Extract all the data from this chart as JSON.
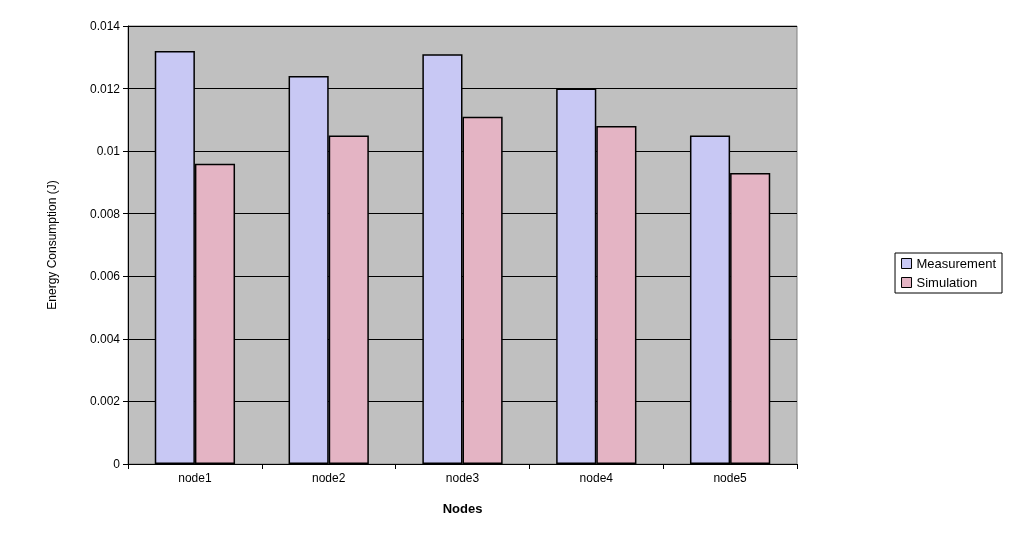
{
  "chart_data": {
    "type": "bar",
    "xlabel": "Nodes",
    "ylabel": "Energy Consumption (J)",
    "categories": [
      "node1",
      "node2",
      "node3",
      "node4",
      "node5"
    ],
    "series": [
      {
        "name": "Measurement",
        "color": "#c8c8f4",
        "values": [
          0.0132,
          0.0124,
          0.0131,
          0.012,
          0.0105
        ]
      },
      {
        "name": "Simulation",
        "color": "#e4b4c4",
        "values": [
          0.0096,
          0.0105,
          0.0111,
          0.0108,
          0.0093
        ]
      }
    ],
    "ylim": [
      0,
      0.014
    ],
    "yticks": [
      0,
      0.002,
      0.004,
      0.006,
      0.008,
      0.01,
      0.012,
      0.014
    ],
    "grid": "y",
    "legend": "right"
  }
}
